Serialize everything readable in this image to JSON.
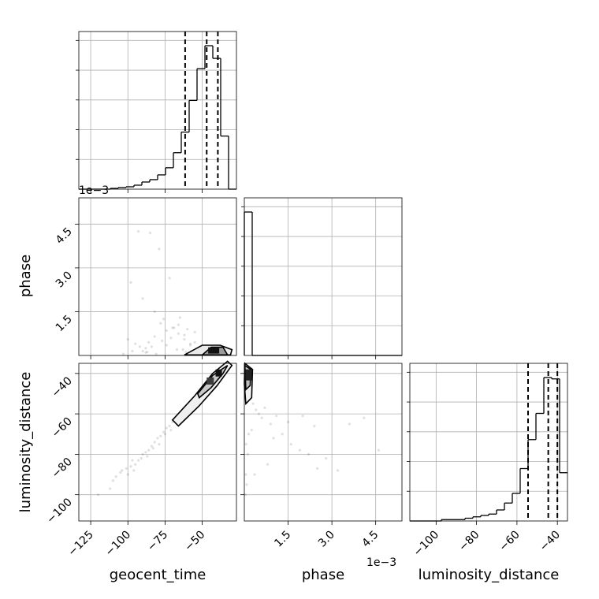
{
  "chart_data": {
    "type": "corner",
    "parameters": [
      "geocent_time",
      "phase",
      "luminosity_distance"
    ],
    "labels": {
      "geocent_time": "geocent_time",
      "phase": "phase",
      "luminosity_distance": "luminosity_distance"
    },
    "offset_text": "1e−3",
    "ranges": {
      "geocent_time": [
        -133,
        -27
      ],
      "phase": [
        0,
        5.4
      ],
      "luminosity_distance": [
        -113,
        -35
      ]
    },
    "ticks": {
      "geocent_time": {
        "values": [
          -125,
          -100,
          -75,
          -50
        ],
        "labels": [
          "−125",
          "−100",
          "−75",
          "−50"
        ]
      },
      "phase": {
        "values": [
          1.5,
          3.0,
          4.5
        ],
        "labels": [
          "1.5",
          "3.0",
          "4.5"
        ]
      },
      "luminosity_distance": {
        "values": [
          -100,
          -80,
          -60,
          -40
        ],
        "labels": [
          "−100",
          "−80",
          "−60",
          "−40"
        ]
      }
    },
    "quantiles": {
      "geocent_time": [
        -61.5,
        -47,
        -39.5
      ],
      "luminosity_distance": [
        -54.5,
        -44.5,
        -40
      ]
    },
    "histograms": {
      "geocent_time": {
        "edges": [
          -133,
          -127.7,
          -122.4,
          -117.1,
          -111.8,
          -106.5,
          -101.2,
          -95.9,
          -90.6,
          -85.3,
          -80,
          -74.7,
          -69.4,
          -64.1,
          -58.8,
          -53.5,
          -48.2,
          -42.9,
          -37.6,
          -32.3,
          -27
        ],
        "counts": [
          0,
          0,
          0,
          0,
          1,
          2,
          3,
          5,
          9,
          12,
          18,
          27,
          46,
          72,
          112,
          152,
          181,
          165,
          67,
          0
        ]
      },
      "phase": {
        "edges": [
          0,
          0.27,
          0.54,
          0.81,
          1.08,
          1.35,
          1.62,
          1.89,
          2.16,
          2.43,
          2.7,
          2.97,
          3.24,
          3.51,
          3.78,
          4.05,
          4.32,
          4.59,
          4.86,
          5.13,
          5.4
        ],
        "counts": [
          900,
          0,
          0,
          0,
          0,
          0,
          0,
          0,
          0,
          0,
          0,
          0,
          0,
          0,
          0,
          0,
          0,
          0,
          0,
          0
        ]
      },
      "luminosity_distance": {
        "edges": [
          -113,
          -109.1,
          -105.2,
          -101.3,
          -97.4,
          -93.5,
          -89.6,
          -85.7,
          -81.8,
          -77.9,
          -74,
          -70.1,
          -66.2,
          -62.3,
          -58.4,
          -54.5,
          -50.6,
          -46.7,
          -42.8,
          -38.9,
          -35
        ],
        "counts": [
          0,
          0,
          0,
          0,
          1,
          1,
          1,
          2,
          3,
          4,
          5,
          8,
          13,
          20,
          38,
          59,
          78,
          104,
          103,
          35
        ]
      }
    },
    "samples_geocent_time_vs_phase": {
      "x": [
        -93,
        -85,
        -79,
        -72,
        -65,
        -58,
        -51,
        -46,
        -98,
        -90,
        -82,
        -76,
        -69,
        -62,
        -55,
        -49,
        -44,
        -40,
        -38,
        -36,
        -55,
        -60,
        -66,
        -71,
        -77,
        -84,
        -88,
        -63,
        -57,
        -52,
        -48,
        -43,
        -100,
        -95,
        -88,
        -81,
        -74,
        -67,
        -61,
        -54,
        -78,
        -74,
        -70,
        -66,
        -62,
        -58,
        -82,
        -86,
        -90,
        -103,
        -97,
        -92,
        -87
      ],
      "y": [
        4.25,
        4.2,
        3.65,
        2.65,
        1.3,
        0.4,
        0.2,
        0.1,
        2.5,
        1.95,
        1.5,
        1.25,
        0.95,
        0.7,
        0.45,
        0.3,
        0.15,
        0.12,
        0.08,
        0.05,
        0.8,
        0.9,
        1.05,
        0.6,
        0.5,
        0.3,
        0.25,
        0.2,
        0.15,
        0.1,
        0.08,
        0.05,
        0.55,
        0.4,
        0.1,
        0.05,
        0.35,
        0.2,
        0.12,
        0.06,
        1.1,
        0.85,
        0.95,
        0.75,
        0.55,
        0.35,
        0.65,
        0.45,
        0.15,
        0.05,
        0.15,
        0.3,
        0.12
      ]
    },
    "samples_geocent_time_vs_luminosity_distance": {
      "x": [
        -120,
        -110,
        -105,
        -101,
        -98,
        -95,
        -93,
        -90,
        -88,
        -86,
        -84,
        -82,
        -80,
        -78,
        -76,
        -74,
        -72,
        -70,
        -68,
        -66,
        -64,
        -62,
        -60,
        -58,
        -56,
        -54,
        -52,
        -50,
        -48,
        -46,
        -44,
        -42,
        -40,
        -38,
        -104,
        -97,
        -91,
        -87,
        -83,
        -79,
        -75,
        -71,
        -67,
        -63,
        -59,
        -55,
        -51,
        -47,
        -43,
        -39,
        -112,
        -108,
        -100,
        -96
      ],
      "y": [
        -100,
        -93,
        -89,
        -87,
        -86,
        -85,
        -83,
        -80,
        -79,
        -78,
        -76,
        -74,
        -72,
        -71,
        -69,
        -67,
        -66,
        -64,
        -62,
        -61,
        -59,
        -58,
        -57,
        -55,
        -53,
        -52,
        -50,
        -48,
        -47,
        -45,
        -44,
        -42,
        -40,
        -39,
        -88,
        -83,
        -82,
        -81,
        -77,
        -75,
        -70,
        -68,
        -65,
        -63,
        -60,
        -56,
        -54,
        -50,
        -46,
        -41,
        -97,
        -91,
        -90,
        -88
      ]
    },
    "samples_phase_vs_luminosity_distance": {
      "x": [
        0.05,
        0.1,
        0.2,
        0.3,
        0.4,
        0.5,
        0.6,
        0.7,
        0.9,
        1.1,
        1.3,
        1.6,
        1.9,
        2.2,
        2.5,
        2.8,
        3.2,
        3.6,
        4.1,
        4.6,
        0.15,
        0.25,
        0.35,
        0.8,
        1.0,
        1.5,
        2.0,
        2.4,
        0.05,
        0.08,
        0.12,
        0.04,
        0.06
      ],
      "y": [
        -45,
        -50,
        -52,
        -55,
        -58,
        -60,
        -62,
        -57,
        -65,
        -61,
        -70,
        -75,
        -78,
        -80,
        -87,
        -82,
        -88,
        -65,
        -62,
        -78,
        -70,
        -68,
        -90,
        -85,
        -72,
        -64,
        -61,
        -66,
        -90,
        -95,
        -80,
        -100,
        -75
      ]
    }
  }
}
